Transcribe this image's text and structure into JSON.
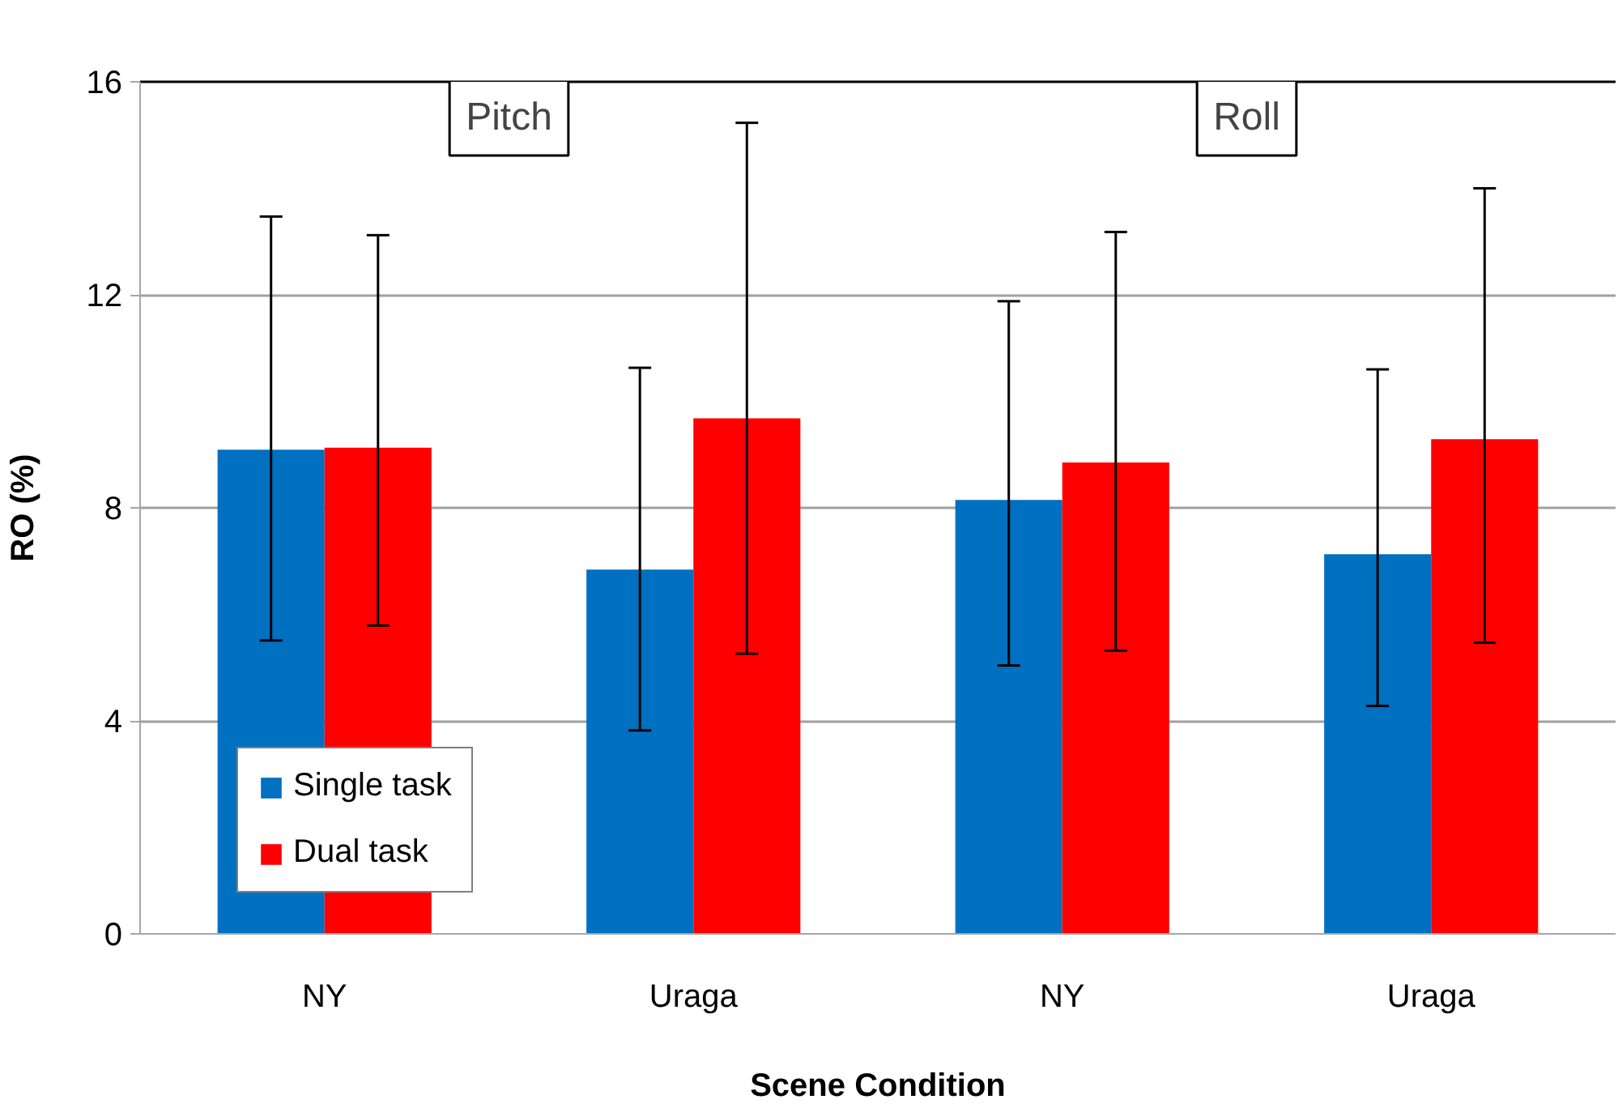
{
  "chart_data": {
    "type": "bar",
    "xlabel": "Scene Condition",
    "ylabel": "RO (%)",
    "categories": [
      "NY",
      "Uraga",
      "NY",
      "Uraga"
    ],
    "annotations": [
      "Pitch",
      "Roll"
    ],
    "series": [
      {
        "name": "Single task",
        "color": "#0070c0",
        "values": [
          9.09,
          6.84,
          8.15,
          7.13
        ],
        "errors": [
          [
            5.51,
            13.47
          ],
          [
            3.82,
            10.63
          ],
          [
            5.04,
            11.88
          ],
          [
            4.28,
            10.6
          ]
        ]
      },
      {
        "name": "Dual task",
        "color": "#ff0000",
        "values": [
          9.13,
          9.68,
          8.85,
          9.29
        ],
        "errors": [
          [
            5.79,
            13.12
          ],
          [
            5.26,
            15.23
          ],
          [
            5.32,
            13.18
          ],
          [
            5.47,
            14.0
          ]
        ]
      }
    ],
    "ylim": [
      0,
      16
    ],
    "yticks": [
      0,
      4,
      8,
      12,
      16
    ],
    "grid": "y",
    "legend": "bottom left"
  }
}
